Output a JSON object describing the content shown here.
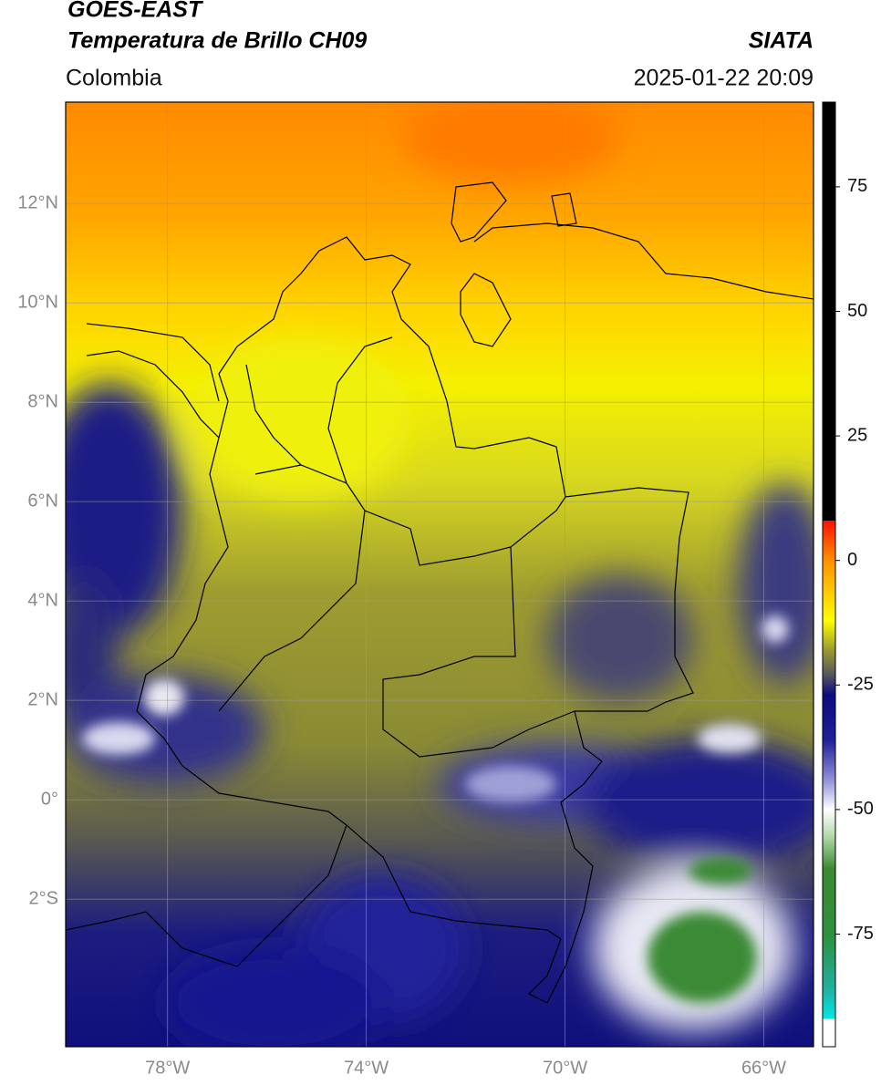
{
  "header": {
    "title": "GOES-EAST",
    "subtitle": "Temperatura de Brillo CH09",
    "source": "SIATA",
    "region": "Colombia",
    "timestamp": "2025-01-22 20:09"
  },
  "map": {
    "lon_range": [
      -80.05,
      -65.0
    ],
    "lat_range": [
      -4.97,
      14.04
    ],
    "grid": true,
    "lon_ticks": [
      {
        "value": -78,
        "label": "78°W"
      },
      {
        "value": -74,
        "label": "74°W"
      },
      {
        "value": -70,
        "label": "70°W"
      },
      {
        "value": -66,
        "label": "66°W"
      }
    ],
    "lat_ticks": [
      {
        "value": 12,
        "label": "12°N"
      },
      {
        "value": 10,
        "label": "10°N"
      },
      {
        "value": 8,
        "label": "8°N"
      },
      {
        "value": 6,
        "label": "6°N"
      },
      {
        "value": 4,
        "label": "4°N"
      },
      {
        "value": 2,
        "label": "2°N"
      },
      {
        "value": 0,
        "label": "0°"
      },
      {
        "value": -2,
        "label": "2°S"
      }
    ]
  },
  "colorbar": {
    "range": [
      -97.6,
      92
    ],
    "ticks": [
      75,
      50,
      25,
      0,
      -25,
      -50,
      -75
    ],
    "stops": [
      {
        "value": -97.6,
        "color": "#ffffff"
      },
      {
        "value": -92,
        "color": "#ffffff"
      },
      {
        "value": -92,
        "color": "#00e8e8"
      },
      {
        "value": -86,
        "color": "#20b0a0"
      },
      {
        "value": -75,
        "color": "#2f8f3f"
      },
      {
        "value": -62,
        "color": "#3a8a30"
      },
      {
        "value": -55,
        "color": "#b8dcb0"
      },
      {
        "value": -50,
        "color": "#ffffff"
      },
      {
        "value": -44,
        "color": "#9090d8"
      },
      {
        "value": -36,
        "color": "#202098"
      },
      {
        "value": -27,
        "color": "#0c0c80"
      },
      {
        "value": -23,
        "color": "#555560"
      },
      {
        "value": -18,
        "color": "#9a9a30"
      },
      {
        "value": -12,
        "color": "#ffff00"
      },
      {
        "value": 0,
        "color": "#ff9000"
      },
      {
        "value": 8,
        "color": "#ff1000"
      },
      {
        "value": 8,
        "color": "#000000"
      },
      {
        "value": 92,
        "color": "#000000"
      }
    ]
  }
}
